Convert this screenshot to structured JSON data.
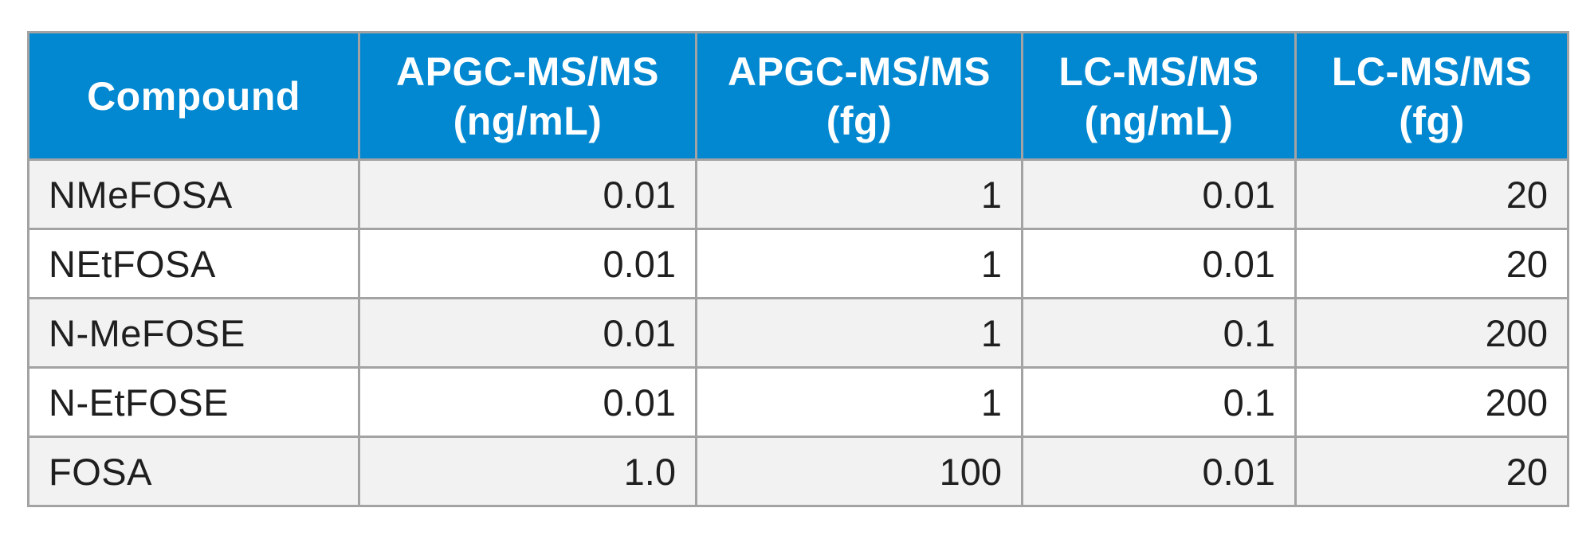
{
  "table": {
    "columns": [
      {
        "line1": "Compound",
        "line2": ""
      },
      {
        "line1": "APGC-MS/MS",
        "line2": "(ng/mL)"
      },
      {
        "line1": "APGC-MS/MS",
        "line2": "(fg)"
      },
      {
        "line1": "LC-MS/MS",
        "line2": "(ng/mL)"
      },
      {
        "line1": "LC-MS/MS",
        "line2": "(fg)"
      }
    ],
    "rows": [
      {
        "compound": "NMeFOSA",
        "apgc_ngml": "0.01",
        "apgc_fg": "1",
        "lc_ngml": "0.01",
        "lc_fg": "20"
      },
      {
        "compound": "NEtFOSA",
        "apgc_ngml": "0.01",
        "apgc_fg": "1",
        "lc_ngml": "0.01",
        "lc_fg": "20"
      },
      {
        "compound": "N-MeFOSE",
        "apgc_ngml": "0.01",
        "apgc_fg": "1",
        "lc_ngml": "0.1",
        "lc_fg": "200"
      },
      {
        "compound": "N-EtFOSE",
        "apgc_ngml": "0.01",
        "apgc_fg": "1",
        "lc_ngml": "0.1",
        "lc_fg": "200"
      },
      {
        "compound": "FOSA",
        "apgc_ngml": "1.0",
        "apgc_fg": "100",
        "lc_ngml": "0.01",
        "lc_fg": "20"
      }
    ]
  },
  "colors": {
    "header_bg": "#0288d1",
    "header_text": "#ffffff",
    "border": "#a3a3a3",
    "row_alt_bg": "#f2f2f3"
  }
}
